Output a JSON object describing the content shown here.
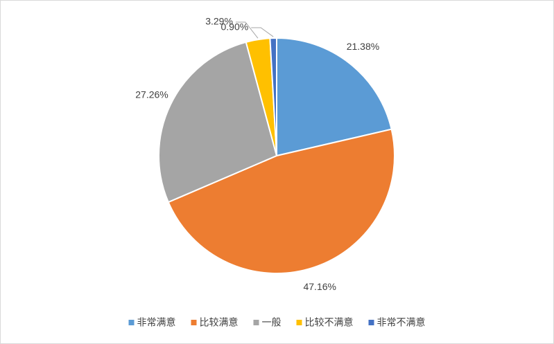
{
  "chart_data": {
    "type": "pie",
    "categories": [
      "非常满意",
      "比较满意",
      "一般",
      "比较不满意",
      "非常不满意"
    ],
    "values": [
      21.38,
      47.16,
      27.26,
      3.29,
      0.9
    ],
    "value_labels": [
      "21.38%",
      "47.16%",
      "27.26%",
      "3.29%",
      "0.90%"
    ],
    "colors": [
      "#5b9bd5",
      "#ed7d31",
      "#a5a5a5",
      "#ffc000",
      "#4472c4"
    ],
    "legend": "bottom"
  }
}
